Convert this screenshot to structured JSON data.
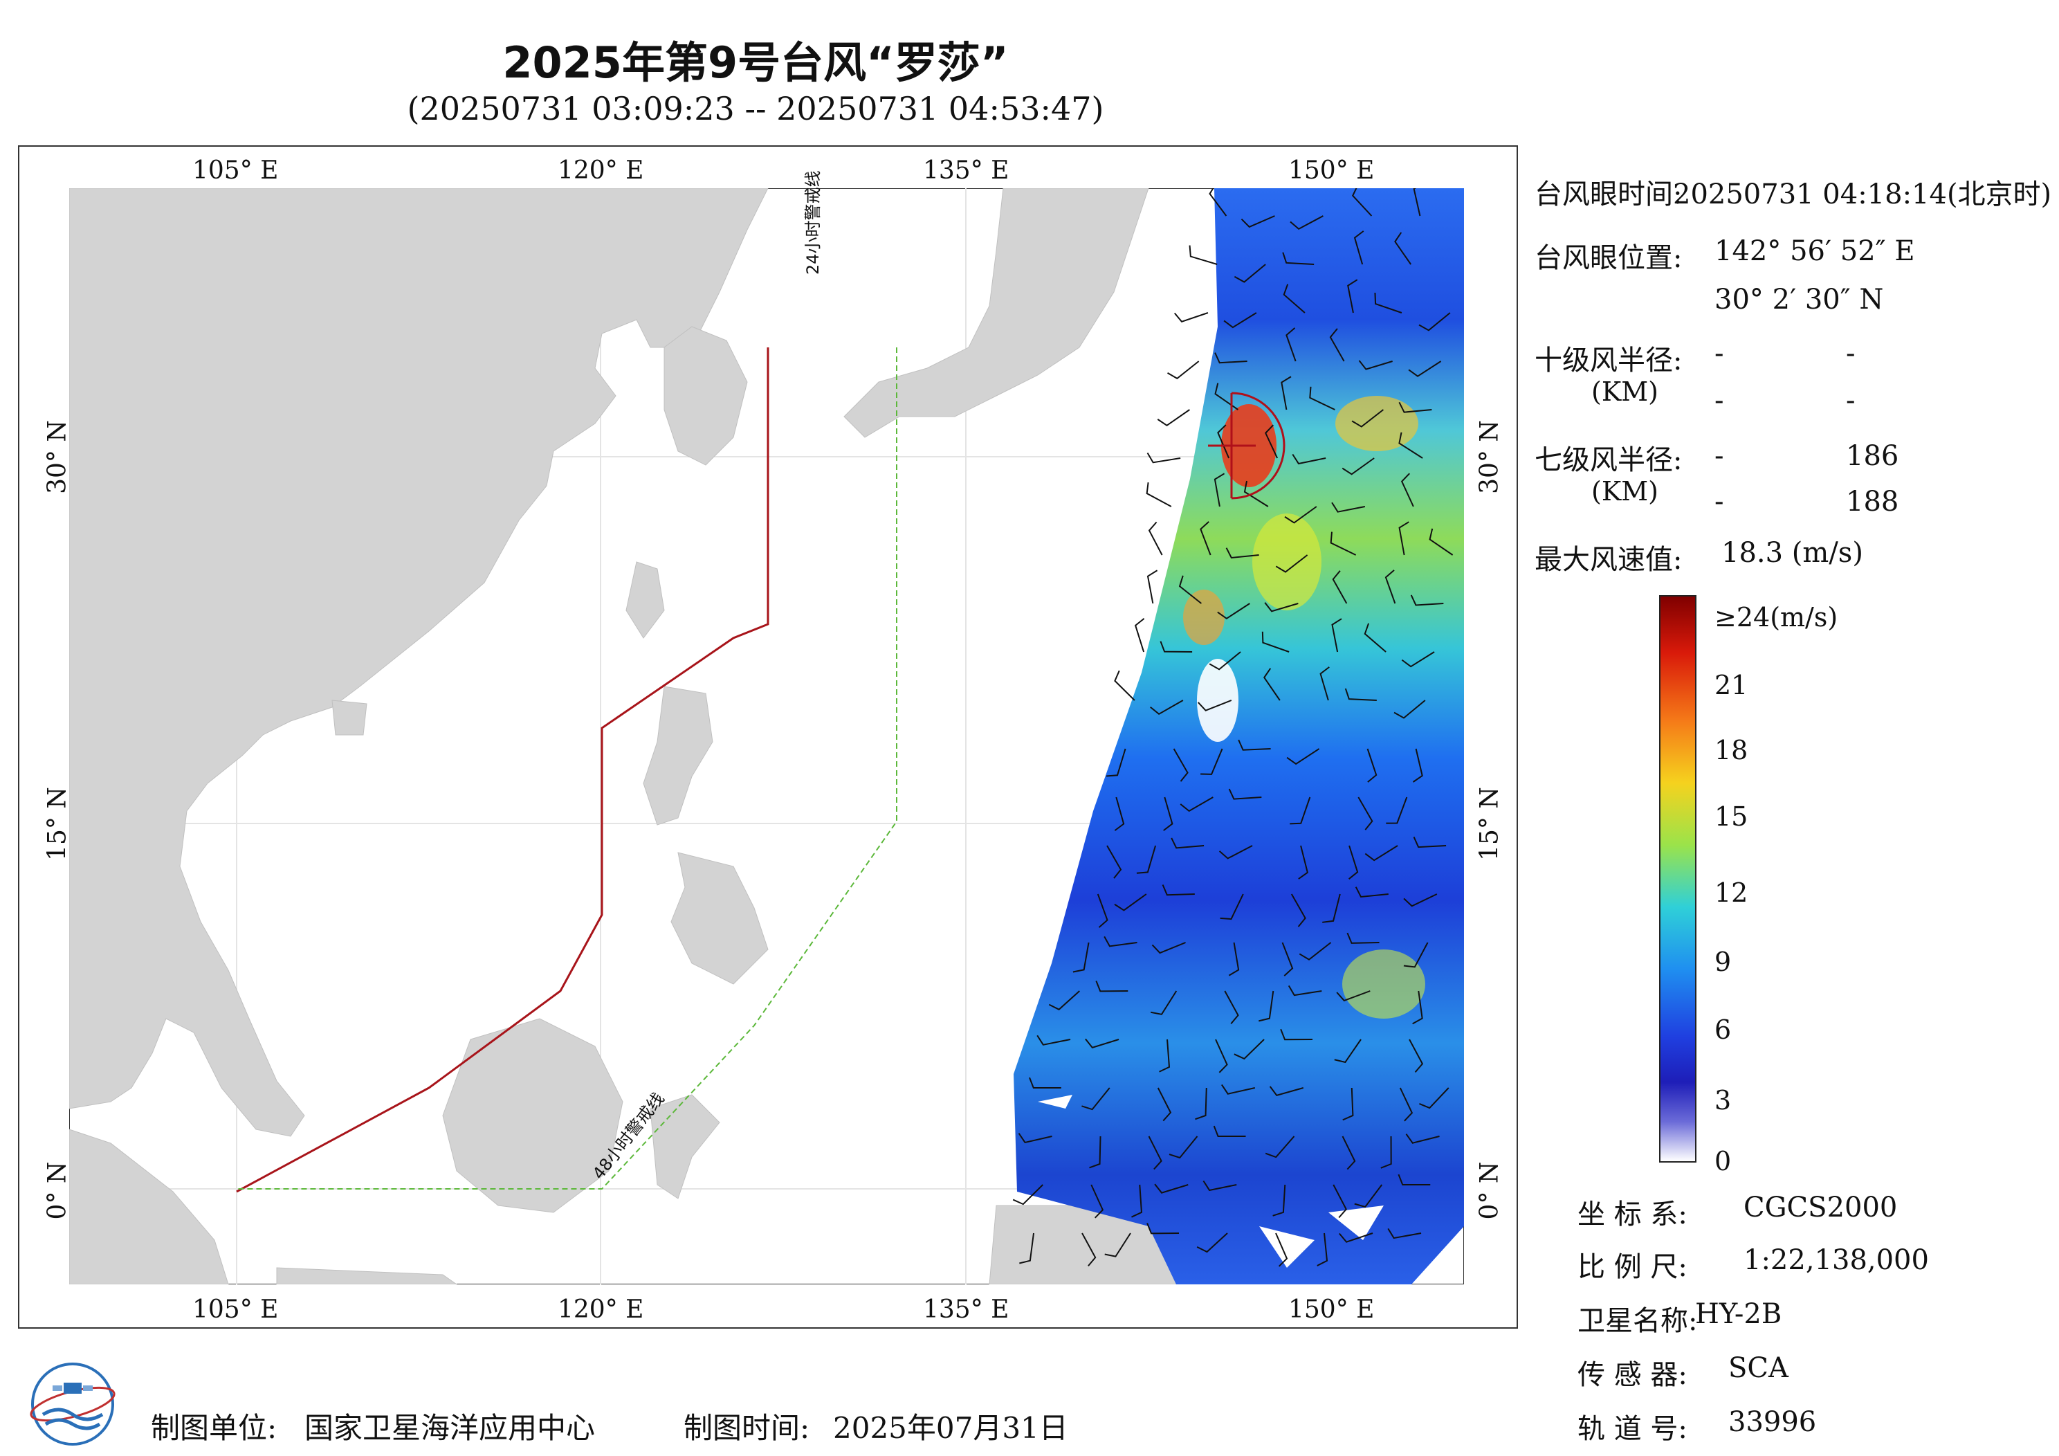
{
  "header": {
    "title": "2025年第9号台风“罗莎”",
    "subtitle": "(20250731 03:09:23 -- 20250731 04:53:47)"
  },
  "map": {
    "lon_ticks": [
      "105° E",
      "120° E",
      "135° E",
      "150° E"
    ],
    "lat_ticks": [
      "30° N",
      "15° N",
      "0° N"
    ],
    "warning_24h": "24小时警戒线",
    "warning_48h": "48小时警戒线",
    "colors": {
      "land": "#d3d3d3",
      "sea": "#ffffff",
      "line24": "#a8141a",
      "line48": "#5cb83a"
    }
  },
  "info": {
    "eye_time_label": "台风眼时间:",
    "eye_time_value": "20250731 04:18:14(北京时)",
    "eye_pos_label": "台风眼位置:",
    "eye_lon": "142° 56′ 52″ E",
    "eye_lat": "30° 2′ 30″ N",
    "r10_label": "十级风半径:",
    "r10_unit": "(KM)",
    "r10_values": [
      "-",
      "-",
      "-",
      "-"
    ],
    "r7_label": "七级风半径:",
    "r7_unit": "(KM)",
    "r7_values": [
      "-",
      "186",
      "-",
      "188"
    ],
    "max_wind_label": "最大风速值:",
    "max_wind_value": "18.3  (m/s)"
  },
  "colorbar": {
    "ticks": [
      "≥24(m/s)",
      "21",
      "18",
      "15",
      "12",
      "9",
      "6",
      "3",
      "0"
    ]
  },
  "meta": {
    "coord_label": "坐 标 系:",
    "coord_value": "CGCS2000",
    "scale_label": "比 例 尺:",
    "scale_value": "1:22,138,000",
    "sat_label": "卫星名称:",
    "sat_value": "HY-2B",
    "sensor_label": "传 感 器:",
    "sensor_value": "SCA",
    "orbit_label": "轨 道 号:",
    "orbit_value": "33996"
  },
  "footer": {
    "org_label": "制图单位:",
    "org_value": "国家卫星海洋应用中心",
    "time_label": "制图时间:",
    "time_value": "2025年07月31日"
  }
}
